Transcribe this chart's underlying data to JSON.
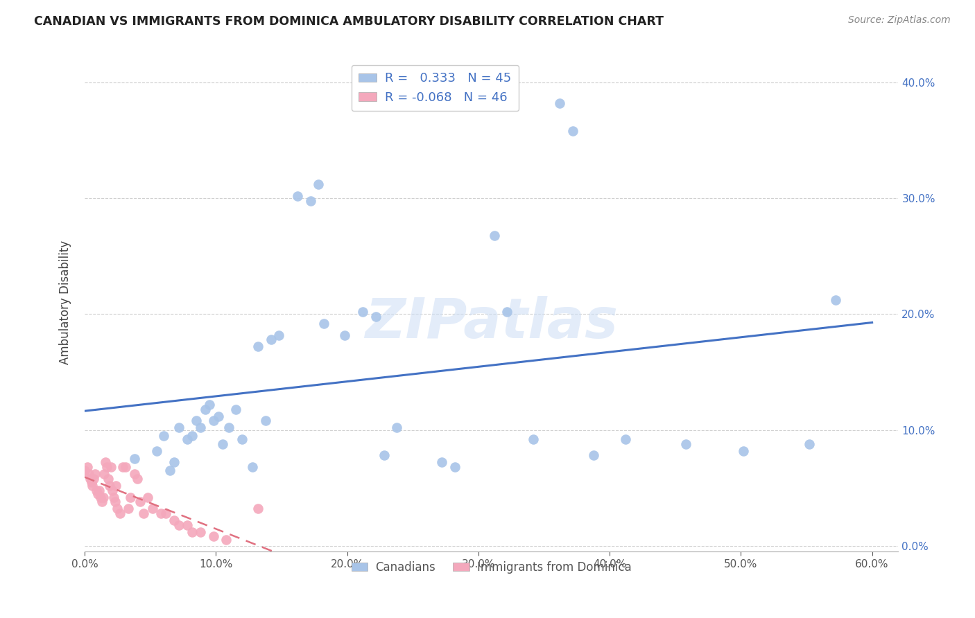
{
  "title": "CANADIAN VS IMMIGRANTS FROM DOMINICA AMBULATORY DISABILITY CORRELATION CHART",
  "source": "Source: ZipAtlas.com",
  "ylabel": "Ambulatory Disability",
  "xlim": [
    0.0,
    0.62
  ],
  "ylim": [
    -0.005,
    0.425
  ],
  "xticks": [
    0.0,
    0.1,
    0.2,
    0.3,
    0.4,
    0.5,
    0.6
  ],
  "yticks": [
    0.0,
    0.1,
    0.2,
    0.3,
    0.4
  ],
  "canadian_R": 0.333,
  "canadian_N": 45,
  "dominica_R": -0.068,
  "dominica_N": 46,
  "blue_color": "#a8c4e8",
  "pink_color": "#f4a8bc",
  "blue_line_color": "#4472c4",
  "pink_line_color": "#e07080",
  "watermark_text": "ZIPatlas",
  "legend_blue_label": "Canadians",
  "legend_pink_label": "Immigrants from Dominica",
  "canadian_x": [
    0.038,
    0.055,
    0.06,
    0.065,
    0.068,
    0.072,
    0.078,
    0.082,
    0.085,
    0.088,
    0.092,
    0.095,
    0.098,
    0.102,
    0.105,
    0.11,
    0.115,
    0.12,
    0.128,
    0.132,
    0.138,
    0.142,
    0.148,
    0.162,
    0.172,
    0.178,
    0.182,
    0.198,
    0.212,
    0.222,
    0.228,
    0.238,
    0.272,
    0.282,
    0.312,
    0.322,
    0.342,
    0.362,
    0.372,
    0.388,
    0.412,
    0.458,
    0.502,
    0.552,
    0.572
  ],
  "canadian_y": [
    0.075,
    0.082,
    0.095,
    0.065,
    0.072,
    0.102,
    0.092,
    0.095,
    0.108,
    0.102,
    0.118,
    0.122,
    0.108,
    0.112,
    0.088,
    0.102,
    0.118,
    0.092,
    0.068,
    0.172,
    0.108,
    0.178,
    0.182,
    0.302,
    0.298,
    0.312,
    0.192,
    0.182,
    0.202,
    0.198,
    0.078,
    0.102,
    0.072,
    0.068,
    0.268,
    0.202,
    0.092,
    0.382,
    0.358,
    0.078,
    0.092,
    0.088,
    0.082,
    0.088,
    0.212
  ],
  "dominica_x": [
    0.0,
    0.002,
    0.003,
    0.004,
    0.005,
    0.006,
    0.007,
    0.008,
    0.009,
    0.01,
    0.011,
    0.012,
    0.013,
    0.014,
    0.015,
    0.016,
    0.017,
    0.018,
    0.019,
    0.02,
    0.021,
    0.022,
    0.023,
    0.024,
    0.025,
    0.027,
    0.029,
    0.031,
    0.033,
    0.035,
    0.038,
    0.04,
    0.042,
    0.045,
    0.048,
    0.052,
    0.058,
    0.062,
    0.068,
    0.072,
    0.078,
    0.082,
    0.088,
    0.098,
    0.108,
    0.132
  ],
  "dominica_y": [
    0.065,
    0.068,
    0.062,
    0.058,
    0.055,
    0.052,
    0.058,
    0.062,
    0.048,
    0.045,
    0.048,
    0.042,
    0.038,
    0.042,
    0.062,
    0.072,
    0.068,
    0.058,
    0.052,
    0.068,
    0.048,
    0.042,
    0.038,
    0.052,
    0.032,
    0.028,
    0.068,
    0.068,
    0.032,
    0.042,
    0.062,
    0.058,
    0.038,
    0.028,
    0.042,
    0.032,
    0.028,
    0.028,
    0.022,
    0.018,
    0.018,
    0.012,
    0.012,
    0.008,
    0.005,
    0.032
  ],
  "background_color": "#ffffff",
  "grid_color": "#d0d0d0"
}
